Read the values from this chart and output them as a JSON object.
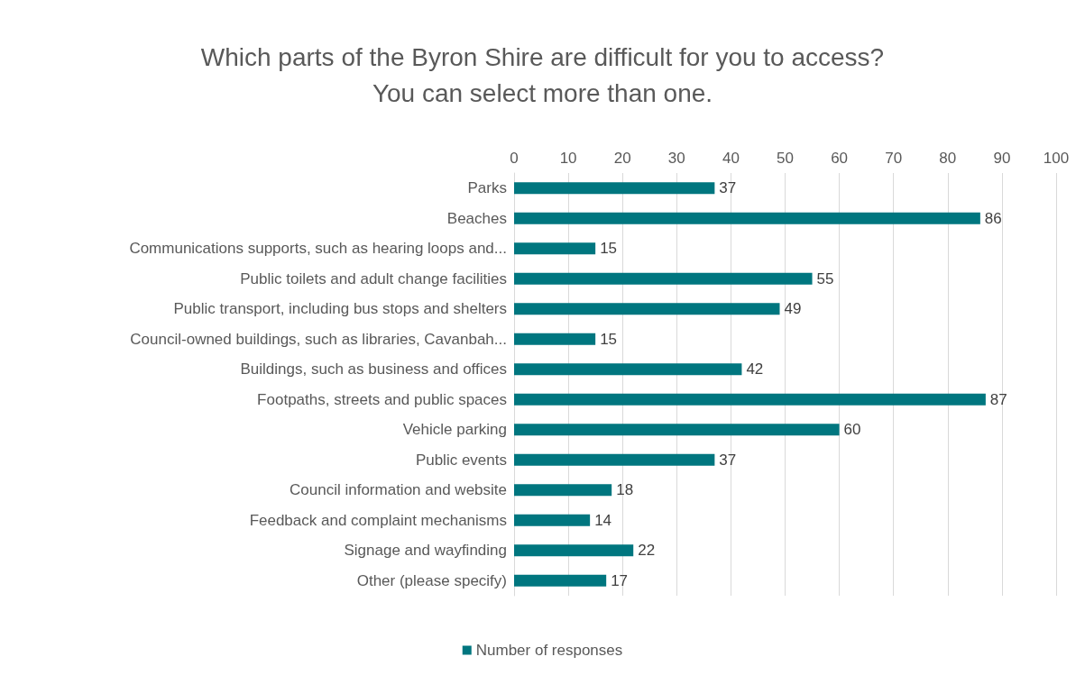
{
  "chart_data": {
    "type": "bar",
    "orientation": "horizontal",
    "title": "Which parts of the Byron Shire are difficult for you to access?\nYou can select more than one.",
    "categories": [
      "Parks",
      "Beaches",
      "Communications supports, such as hearing loops and...",
      "Public toilets and adult change facilities",
      "Public transport, including bus stops and shelters",
      "Council-owned buildings, such as libraries, Cavanbah...",
      "Buildings, such as business and offices",
      "Footpaths, streets and public spaces",
      "Vehicle parking",
      "Public events",
      "Council information and website",
      "Feedback and complaint mechanisms",
      "Signage and wayfinding",
      "Other (please specify)"
    ],
    "series": [
      {
        "name": "Number of responses",
        "color": "#00767f",
        "values": [
          37,
          86,
          15,
          55,
          49,
          15,
          42,
          87,
          60,
          37,
          18,
          14,
          22,
          17
        ]
      }
    ],
    "xlim": [
      0,
      100
    ],
    "xticks": [
      0,
      10,
      20,
      30,
      40,
      50,
      60,
      70,
      80,
      90,
      100
    ],
    "grid": "x",
    "legend": "bottom",
    "data_labels": true
  }
}
